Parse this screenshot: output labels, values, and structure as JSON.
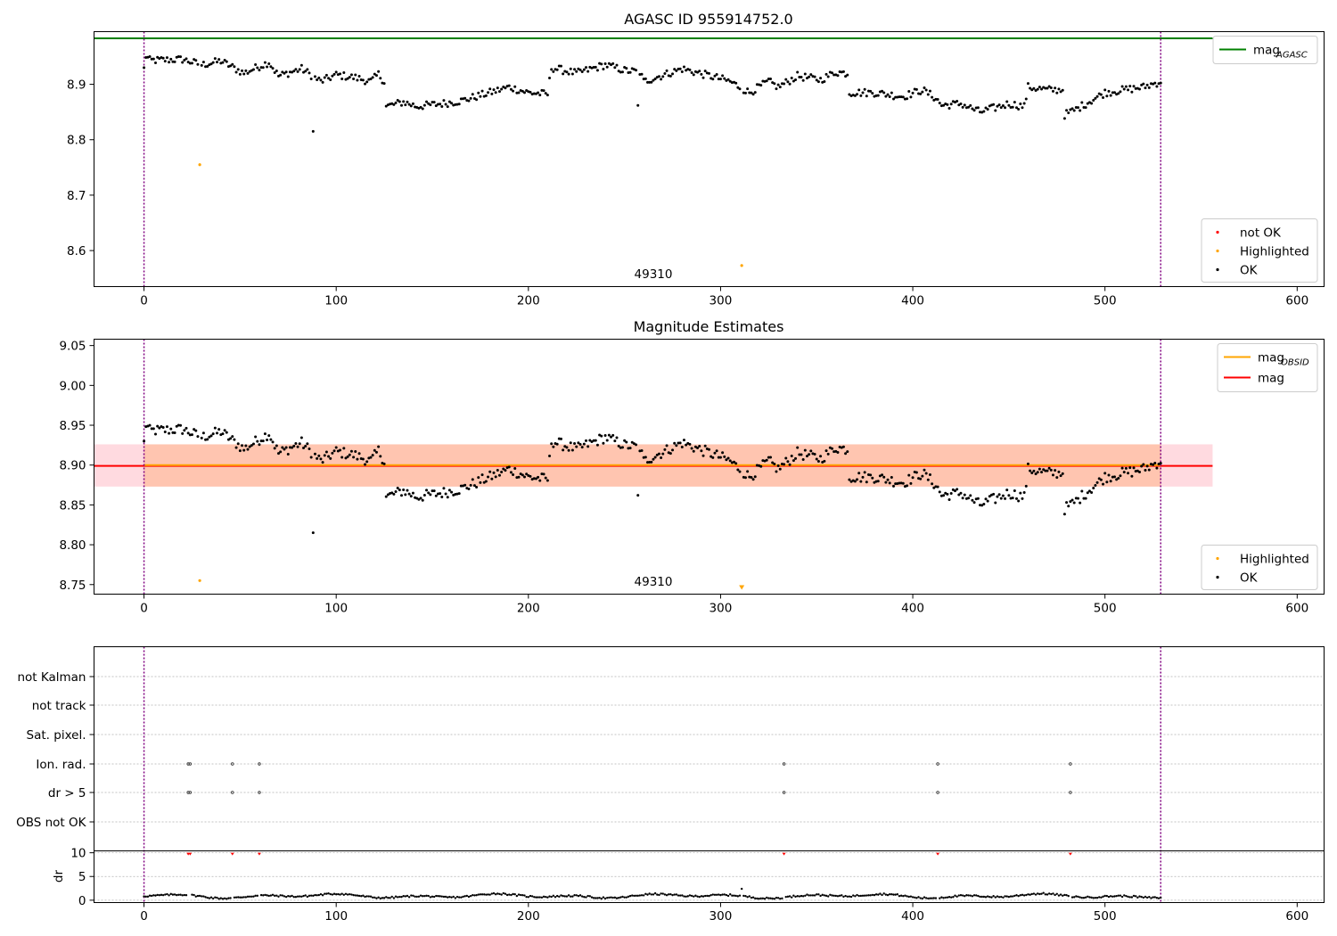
{
  "colors": {
    "ok": "#000000",
    "highlighted": "#ffa500",
    "not_ok": "#ff0000",
    "agasc_line": "#008000",
    "mag_line": "#ff0000",
    "mag_obsid": "#ffa500",
    "band_obsid": "#ffb080",
    "band_mag": "#ffb6c1",
    "vline": "#800080",
    "grid": "#b0b0b0"
  },
  "chart_data": [
    {
      "type": "scatter",
      "title": "AGASC ID 955914752.0",
      "xlim": [
        -26,
        614
      ],
      "ylim": [
        8.535,
        8.995
      ],
      "xticks": [
        0,
        100,
        200,
        300,
        400,
        500,
        600
      ],
      "yticks": [
        8.6,
        8.7,
        8.8,
        8.9
      ],
      "obsid_label": "49310",
      "obsid_label_x": 265,
      "obs_bounds": [
        0,
        529
      ],
      "mag_agasc": 8.983,
      "mag_agasc_span": [
        -26,
        556
      ],
      "legend_lines": [
        {
          "name": "mag",
          "sub": "AGASC",
          "color": "#008000"
        }
      ],
      "legend_points": [
        {
          "name": "not OK",
          "color": "#ff0000"
        },
        {
          "name": "Highlighted",
          "color": "#ffa500"
        },
        {
          "name": "OK",
          "color": "#000000"
        }
      ],
      "highlighted_points": [
        [
          29,
          8.755
        ],
        [
          311,
          8.573
        ]
      ],
      "outliers": [
        [
          88,
          8.815
        ],
        [
          257,
          8.862
        ]
      ]
    },
    {
      "type": "scatter",
      "title": "Magnitude Estimates",
      "xlim": [
        -26,
        614
      ],
      "ylim": [
        8.738,
        9.058
      ],
      "xticks": [
        0,
        100,
        200,
        300,
        400,
        500,
        600
      ],
      "yticks": [
        8.75,
        8.8,
        8.85,
        8.9,
        8.95,
        9.0,
        9.05
      ],
      "obsid_label": "49310",
      "obsid_label_x": 265,
      "obs_bounds": [
        0,
        529
      ],
      "mag": 8.899,
      "mag_band": [
        8.873,
        8.926
      ],
      "mag_span": [
        -26,
        556
      ],
      "mag_obsid": 8.9,
      "mag_obsid_span": [
        0,
        529
      ],
      "legend_lines": [
        {
          "name": "mag",
          "sub": "OBSID",
          "color": "#ffa500"
        },
        {
          "name": "mag",
          "sub": "",
          "color": "#ff0000"
        }
      ],
      "legend_points": [
        {
          "name": "Highlighted",
          "color": "#ffa500"
        },
        {
          "name": "OK",
          "color": "#000000"
        }
      ],
      "highlighted_points": [
        [
          29,
          8.755
        ]
      ],
      "highlighted_marker": [
        [
          311,
          8.747
        ]
      ],
      "outliers": [
        [
          88,
          8.815
        ],
        [
          257,
          8.862
        ]
      ]
    },
    {
      "type": "scatter",
      "title": "",
      "xlim": [
        -26,
        614
      ],
      "xticks": [
        0,
        100,
        200,
        300,
        400,
        500,
        600
      ],
      "flag_categories": [
        "not Kalman",
        "not track",
        "Sat. pixel.",
        "Ion. rad.",
        "dr > 5",
        "OBS not OK"
      ],
      "flags": {
        "Ion. rad.": [
          23,
          24,
          46,
          60,
          333,
          413,
          482
        ],
        "dr > 5": [
          23,
          24,
          46,
          60,
          333,
          413,
          482
        ]
      },
      "dr_ylabel": "dr",
      "dr_yticks": [
        0,
        5,
        10
      ],
      "dr_ylim": [
        -0.5,
        10.4
      ],
      "dr_capped": [
        23,
        24,
        46,
        60,
        333,
        413,
        482
      ],
      "dr_outlier": [
        311,
        2.4
      ],
      "obs_bounds": [
        0,
        529
      ]
    }
  ]
}
